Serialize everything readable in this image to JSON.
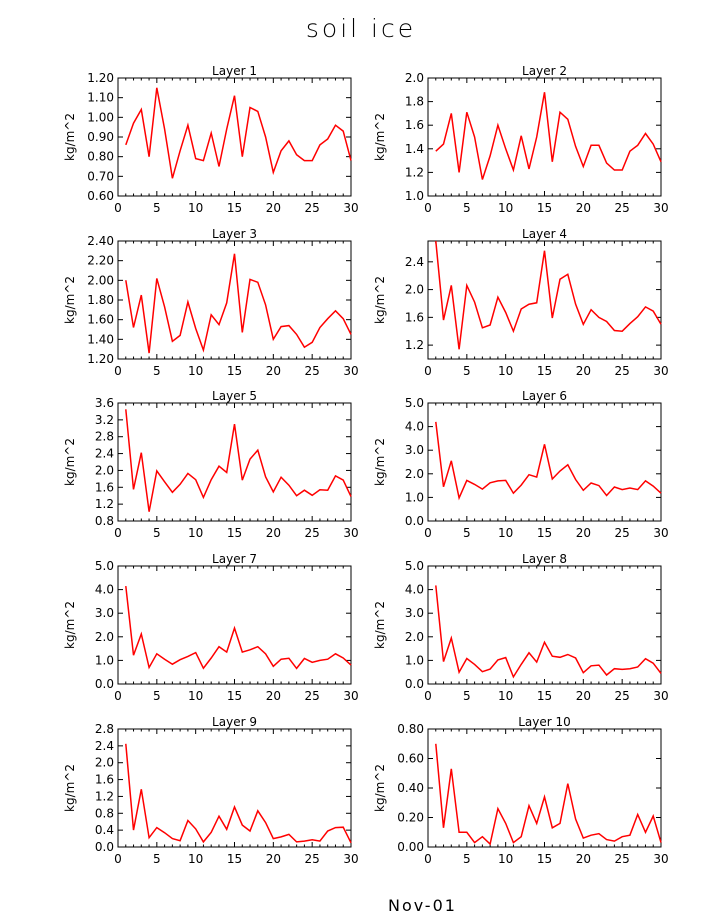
{
  "title": "soil ice",
  "footer_label": "Nov-01",
  "line_color": "#ff0000",
  "chart_data": [
    {
      "type": "line",
      "title": "Layer 1",
      "ylabel": "kg/m^2",
      "xlim": [
        0,
        30
      ],
      "ylim": [
        0.6,
        1.2
      ],
      "xticks": [
        0,
        5,
        10,
        15,
        20,
        25,
        30
      ],
      "yticks": [
        0.6,
        0.7,
        0.8,
        0.9,
        1.0,
        1.1,
        1.2
      ],
      "ytick_labels": [
        "0.60",
        "0.70",
        "0.80",
        "0.90",
        "1.00",
        "1.10",
        "1.20"
      ],
      "x": [
        1,
        2,
        3,
        4,
        5,
        6,
        7,
        8,
        9,
        10,
        11,
        12,
        13,
        14,
        15,
        16,
        17,
        18,
        19,
        20,
        21,
        22,
        23,
        24,
        25,
        26,
        27,
        28,
        29,
        30
      ],
      "series": [
        {
          "values": [
            0.86,
            0.97,
            1.04,
            0.8,
            1.15,
            0.94,
            0.69,
            0.83,
            0.96,
            0.79,
            0.78,
            0.92,
            0.75,
            0.94,
            1.11,
            0.8,
            1.05,
            1.03,
            0.9,
            0.72,
            0.83,
            0.88,
            0.81,
            0.78,
            0.78,
            0.86,
            0.89,
            0.96,
            0.93,
            0.78
          ]
        }
      ]
    },
    {
      "type": "line",
      "title": "Layer 2",
      "ylabel": "kg/m^2",
      "xlim": [
        0,
        30
      ],
      "ylim": [
        1.0,
        2.0
      ],
      "xticks": [
        0,
        5,
        10,
        15,
        20,
        25,
        30
      ],
      "yticks": [
        1.0,
        1.2,
        1.4,
        1.6,
        1.8,
        2.0
      ],
      "ytick_labels": [
        "1.0",
        "1.2",
        "1.4",
        "1.6",
        "1.8",
        "2.0"
      ],
      "x": [
        1,
        2,
        3,
        4,
        5,
        6,
        7,
        8,
        9,
        10,
        11,
        12,
        13,
        14,
        15,
        16,
        17,
        18,
        19,
        20,
        21,
        22,
        23,
        24,
        25,
        26,
        27,
        28,
        29,
        30
      ],
      "series": [
        {
          "values": [
            1.38,
            1.44,
            1.7,
            1.2,
            1.71,
            1.5,
            1.14,
            1.34,
            1.6,
            1.4,
            1.22,
            1.51,
            1.23,
            1.5,
            1.88,
            1.29,
            1.71,
            1.65,
            1.42,
            1.25,
            1.43,
            1.43,
            1.28,
            1.22,
            1.22,
            1.38,
            1.43,
            1.53,
            1.44,
            1.29
          ]
        }
      ]
    },
    {
      "type": "line",
      "title": "Layer 3",
      "ylabel": "kg/m^2",
      "xlim": [
        0,
        30
      ],
      "ylim": [
        1.2,
        2.4
      ],
      "xticks": [
        0,
        5,
        10,
        15,
        20,
        25,
        30
      ],
      "yticks": [
        1.2,
        1.4,
        1.6,
        1.8,
        2.0,
        2.2,
        2.4
      ],
      "ytick_labels": [
        "1.20",
        "1.40",
        "1.60",
        "1.80",
        "2.00",
        "2.20",
        "2.40"
      ],
      "x": [
        1,
        2,
        3,
        4,
        5,
        6,
        7,
        8,
        9,
        10,
        11,
        12,
        13,
        14,
        15,
        16,
        17,
        18,
        19,
        20,
        21,
        22,
        23,
        24,
        25,
        26,
        27,
        28,
        29,
        30
      ],
      "series": [
        {
          "values": [
            2.0,
            1.52,
            1.85,
            1.26,
            2.02,
            1.73,
            1.38,
            1.44,
            1.78,
            1.51,
            1.29,
            1.65,
            1.55,
            1.77,
            2.27,
            1.47,
            2.01,
            1.98,
            1.75,
            1.4,
            1.53,
            1.54,
            1.45,
            1.32,
            1.37,
            1.52,
            1.61,
            1.69,
            1.61,
            1.45
          ]
        }
      ]
    },
    {
      "type": "line",
      "title": "Layer 4",
      "ylabel": "kg/m^2",
      "xlim": [
        0,
        30
      ],
      "ylim": [
        1.0,
        2.7
      ],
      "xticks": [
        0,
        5,
        10,
        15,
        20,
        25,
        30
      ],
      "yticks": [
        1.2,
        1.6,
        2.0,
        2.4
      ],
      "ytick_labels": [
        "1.2",
        "1.6",
        "2.0",
        "2.4"
      ],
      "x": [
        1,
        2,
        3,
        4,
        5,
        6,
        7,
        8,
        9,
        10,
        11,
        12,
        13,
        14,
        15,
        16,
        17,
        18,
        19,
        20,
        21,
        22,
        23,
        24,
        25,
        26,
        27,
        28,
        29,
        30
      ],
      "series": [
        {
          "values": [
            2.7,
            1.56,
            2.06,
            1.14,
            2.06,
            1.82,
            1.45,
            1.49,
            1.89,
            1.67,
            1.4,
            1.72,
            1.79,
            1.81,
            2.56,
            1.59,
            2.15,
            2.22,
            1.79,
            1.5,
            1.71,
            1.6,
            1.54,
            1.41,
            1.4,
            1.51,
            1.61,
            1.75,
            1.69,
            1.5
          ]
        }
      ]
    },
    {
      "type": "line",
      "title": "Layer 5",
      "ylabel": "kg/m^2",
      "xlim": [
        0,
        30
      ],
      "ylim": [
        0.8,
        3.6
      ],
      "xticks": [
        0,
        5,
        10,
        15,
        20,
        25,
        30
      ],
      "yticks": [
        0.8,
        1.2,
        1.6,
        2.0,
        2.4,
        2.8,
        3.2,
        3.6
      ],
      "ytick_labels": [
        "0.8",
        "1.2",
        "1.6",
        "2.0",
        "2.4",
        "2.8",
        "3.2",
        "3.6"
      ],
      "x": [
        1,
        2,
        3,
        4,
        5,
        6,
        7,
        8,
        9,
        10,
        11,
        12,
        13,
        14,
        15,
        16,
        17,
        18,
        19,
        20,
        21,
        22,
        23,
        24,
        25,
        26,
        27,
        28,
        29,
        30
      ],
      "series": [
        {
          "values": [
            3.45,
            1.55,
            2.42,
            1.02,
            1.99,
            1.73,
            1.48,
            1.67,
            1.93,
            1.78,
            1.36,
            1.78,
            2.1,
            1.95,
            3.1,
            1.77,
            2.27,
            2.48,
            1.85,
            1.49,
            1.84,
            1.65,
            1.4,
            1.53,
            1.41,
            1.54,
            1.53,
            1.87,
            1.77,
            1.38
          ]
        }
      ]
    },
    {
      "type": "line",
      "title": "Layer 6",
      "ylabel": "kg/m^2",
      "xlim": [
        0,
        30
      ],
      "ylim": [
        0.0,
        5.0
      ],
      "xticks": [
        0,
        5,
        10,
        15,
        20,
        25,
        30
      ],
      "yticks": [
        0.0,
        1.0,
        2.0,
        3.0,
        4.0,
        5.0
      ],
      "ytick_labels": [
        "0.0",
        "1.0",
        "2.0",
        "3.0",
        "4.0",
        "5.0"
      ],
      "x": [
        1,
        2,
        3,
        4,
        5,
        6,
        7,
        8,
        9,
        10,
        11,
        12,
        13,
        14,
        15,
        16,
        17,
        18,
        19,
        20,
        21,
        22,
        23,
        24,
        25,
        26,
        27,
        28,
        29,
        30
      ],
      "series": [
        {
          "values": [
            4.2,
            1.45,
            2.55,
            0.98,
            1.72,
            1.55,
            1.35,
            1.62,
            1.7,
            1.72,
            1.18,
            1.52,
            1.96,
            1.86,
            3.25,
            1.78,
            2.12,
            2.38,
            1.76,
            1.3,
            1.61,
            1.5,
            1.08,
            1.44,
            1.33,
            1.4,
            1.33,
            1.7,
            1.48,
            1.18
          ]
        }
      ]
    },
    {
      "type": "line",
      "title": "Layer 7",
      "ylabel": "kg/m^2",
      "xlim": [
        0,
        30
      ],
      "ylim": [
        0.0,
        5.0
      ],
      "xticks": [
        0,
        5,
        10,
        15,
        20,
        25,
        30
      ],
      "yticks": [
        0.0,
        1.0,
        2.0,
        3.0,
        4.0,
        5.0
      ],
      "ytick_labels": [
        "0.0",
        "1.0",
        "2.0",
        "3.0",
        "4.0",
        "5.0"
      ],
      "x": [
        1,
        2,
        3,
        4,
        5,
        6,
        7,
        8,
        9,
        10,
        11,
        12,
        13,
        14,
        15,
        16,
        17,
        18,
        19,
        20,
        21,
        22,
        23,
        24,
        25,
        26,
        27,
        28,
        29,
        30
      ],
      "series": [
        {
          "values": [
            4.15,
            1.22,
            2.12,
            0.7,
            1.28,
            1.05,
            0.84,
            1.03,
            1.17,
            1.33,
            0.67,
            1.1,
            1.58,
            1.35,
            2.37,
            1.35,
            1.45,
            1.58,
            1.28,
            0.75,
            1.05,
            1.09,
            0.66,
            1.08,
            0.92,
            1.0,
            1.05,
            1.28,
            1.1,
            0.8
          ]
        }
      ]
    },
    {
      "type": "line",
      "title": "Layer 8",
      "ylabel": "kg/m^2",
      "xlim": [
        0,
        30
      ],
      "ylim": [
        0.0,
        5.0
      ],
      "xticks": [
        0,
        5,
        10,
        15,
        20,
        25,
        30
      ],
      "yticks": [
        0.0,
        1.0,
        2.0,
        3.0,
        4.0,
        5.0
      ],
      "ytick_labels": [
        "0.0",
        "1.0",
        "2.0",
        "3.0",
        "4.0",
        "5.0"
      ],
      "x": [
        1,
        2,
        3,
        4,
        5,
        6,
        7,
        8,
        9,
        10,
        11,
        12,
        13,
        14,
        15,
        16,
        17,
        18,
        19,
        20,
        21,
        22,
        23,
        24,
        25,
        26,
        27,
        28,
        29,
        30
      ],
      "series": [
        {
          "values": [
            4.18,
            0.95,
            1.95,
            0.5,
            1.08,
            0.83,
            0.52,
            0.63,
            1.02,
            1.12,
            0.3,
            0.83,
            1.32,
            0.93,
            1.77,
            1.18,
            1.13,
            1.25,
            1.1,
            0.48,
            0.77,
            0.8,
            0.38,
            0.65,
            0.62,
            0.65,
            0.72,
            1.07,
            0.88,
            0.45
          ]
        }
      ]
    },
    {
      "type": "line",
      "title": "Layer 9",
      "ylabel": "kg/m^2",
      "xlim": [
        0,
        30
      ],
      "ylim": [
        0.0,
        2.8
      ],
      "xticks": [
        0,
        5,
        10,
        15,
        20,
        25,
        30
      ],
      "yticks": [
        0.0,
        0.4,
        0.8,
        1.2,
        1.6,
        2.0,
        2.4,
        2.8
      ],
      "ytick_labels": [
        "0.0",
        "0.4",
        "0.8",
        "1.2",
        "1.6",
        "2.0",
        "2.4",
        "2.8"
      ],
      "x": [
        1,
        2,
        3,
        4,
        5,
        6,
        7,
        8,
        9,
        10,
        11,
        12,
        13,
        14,
        15,
        16,
        17,
        18,
        19,
        20,
        21,
        22,
        23,
        24,
        25,
        26,
        27,
        28,
        29,
        30
      ],
      "series": [
        {
          "values": [
            2.45,
            0.4,
            1.37,
            0.22,
            0.46,
            0.34,
            0.2,
            0.15,
            0.63,
            0.43,
            0.12,
            0.35,
            0.73,
            0.42,
            0.95,
            0.52,
            0.38,
            0.86,
            0.58,
            0.2,
            0.24,
            0.3,
            0.12,
            0.14,
            0.17,
            0.14,
            0.38,
            0.46,
            0.47,
            0.1
          ]
        }
      ]
    },
    {
      "type": "line",
      "title": "Layer 10",
      "ylabel": "kg/m^2",
      "xlim": [
        0,
        30
      ],
      "ylim": [
        0.0,
        0.8
      ],
      "xticks": [
        0,
        5,
        10,
        15,
        20,
        25,
        30
      ],
      "yticks": [
        0.0,
        0.2,
        0.4,
        0.6,
        0.8
      ],
      "ytick_labels": [
        "0.00",
        "0.20",
        "0.40",
        "0.60",
        "0.80"
      ],
      "x": [
        1,
        2,
        3,
        4,
        5,
        6,
        7,
        8,
        9,
        10,
        11,
        12,
        13,
        14,
        15,
        16,
        17,
        18,
        19,
        20,
        21,
        22,
        23,
        24,
        25,
        26,
        27,
        28,
        29,
        30
      ],
      "series": [
        {
          "values": [
            0.7,
            0.13,
            0.53,
            0.1,
            0.1,
            0.03,
            0.07,
            0.02,
            0.26,
            0.16,
            0.03,
            0.07,
            0.28,
            0.16,
            0.34,
            0.13,
            0.16,
            0.43,
            0.19,
            0.06,
            0.08,
            0.09,
            0.05,
            0.04,
            0.07,
            0.08,
            0.22,
            0.1,
            0.21,
            0.03
          ]
        }
      ]
    }
  ]
}
